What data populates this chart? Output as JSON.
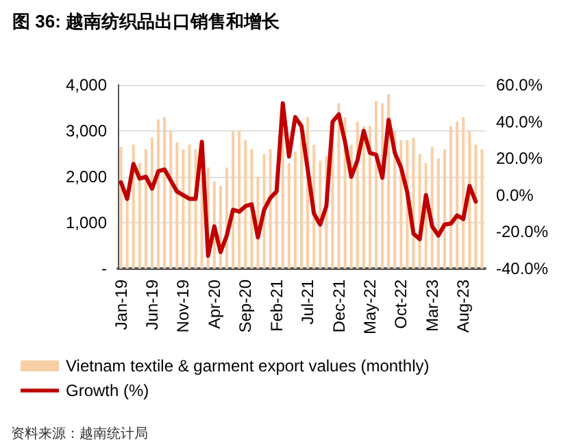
{
  "chart_data": {
    "type": "bar",
    "title": "图 36: 越南纺织品出口销售和增长",
    "categories": [
      "Jan-19",
      null,
      null,
      null,
      null,
      "Jun-19",
      null,
      null,
      null,
      null,
      "Nov-19",
      null,
      null,
      null,
      null,
      "Apr-20",
      null,
      null,
      null,
      null,
      "Sep-20",
      null,
      null,
      null,
      null,
      "Feb-21",
      null,
      null,
      null,
      null,
      "Jul-21",
      null,
      null,
      null,
      null,
      "Dec-21",
      null,
      null,
      null,
      null,
      "May-22",
      null,
      null,
      null,
      null,
      "Oct-22",
      null,
      null,
      null,
      null,
      "Mar-23",
      null,
      null,
      null,
      null,
      "Aug-23",
      null,
      null,
      null
    ],
    "series": [
      {
        "name": "Vietnam textile & garment export values (monthly)",
        "color": "#f9cfa6",
        "values": [
          2650,
          1700,
          2700,
          2300,
          2600,
          2850,
          3250,
          3300,
          3000,
          2750,
          2600,
          2700,
          2600,
          2000,
          2200,
          1900,
          1800,
          2200,
          3000,
          3000,
          2800,
          2600,
          2000,
          2500,
          2600,
          2000,
          3000,
          2300,
          2550,
          2900,
          3300,
          2700,
          2350,
          2450,
          3000,
          3600,
          3300,
          2700,
          3200,
          3100,
          3100,
          3650,
          3600,
          3800,
          3000,
          2800,
          2800,
          2850,
          2500,
          2300,
          2650,
          2400,
          2600,
          3100,
          3200,
          3300,
          3000,
          2700,
          2600
        ]
      },
      {
        "name": "Growth (%)",
        "type": "line",
        "axis": "y2",
        "color": "#c00000",
        "values": [
          7,
          -2,
          17,
          9,
          10,
          3.5,
          13,
          14,
          8,
          2,
          0,
          -2,
          -2,
          29,
          -33,
          -17,
          -31,
          -22,
          -8,
          -9,
          -6,
          -5,
          -23,
          -8,
          -1.5,
          2,
          50,
          21,
          42.5,
          37.5,
          14,
          -10,
          -16,
          -6,
          40,
          44,
          29,
          10,
          19,
          35,
          23,
          22,
          9.5,
          41,
          23,
          15,
          1.5,
          -21,
          -24,
          0,
          -17,
          -22,
          -16,
          -15.5,
          -11,
          -13,
          5,
          -3.5,
          null
        ]
      }
    ],
    "ylim": [
      0,
      4000
    ],
    "yticks": [
      {
        "value": 0,
        "label": "-"
      },
      {
        "value": 1000,
        "label": "1,000"
      },
      {
        "value": 2000,
        "label": "2,000"
      },
      {
        "value": 3000,
        "label": "3,000"
      },
      {
        "value": 4000,
        "label": "4,000"
      }
    ],
    "y2lim": [
      -40,
      60
    ],
    "y2ticks": [
      {
        "value": -40,
        "label": "-40.0%"
      },
      {
        "value": -20,
        "label": "-20.0%"
      },
      {
        "value": 0,
        "label": "0.0%"
      },
      {
        "value": 20,
        "label": "20.0%"
      },
      {
        "value": 40,
        "label": "40.0%"
      },
      {
        "value": 60,
        "label": "60.0%"
      }
    ],
    "grid": "y",
    "legend": "bottom",
    "marker": "none",
    "line_style": "solid",
    "annotations": [
      "资料来源：越南统计局"
    ]
  }
}
